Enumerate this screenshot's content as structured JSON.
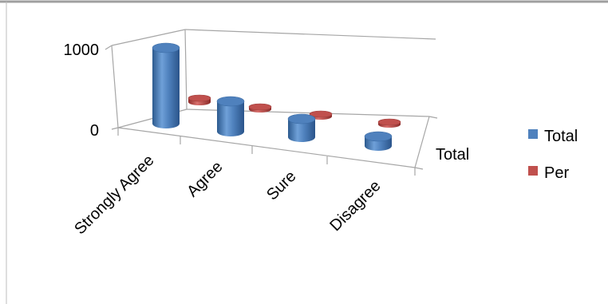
{
  "chart_data": {
    "type": "bar",
    "style": "3d-cylinder",
    "categories": [
      "Strongly Agree",
      "Agree",
      "Sure",
      "Disagree"
    ],
    "depth_label": "Total",
    "series": [
      {
        "name": "Total",
        "values": [
          950,
          380,
          230,
          120
        ],
        "color": "#4f81bd"
      },
      {
        "name": "Per",
        "values": [
          50,
          20,
          12,
          6
        ],
        "color": "#c0504d"
      }
    ],
    "ylim": [
      0,
      1000
    ],
    "y_ticks": [
      "0",
      "1000"
    ],
    "legend": "right",
    "grid": false
  }
}
